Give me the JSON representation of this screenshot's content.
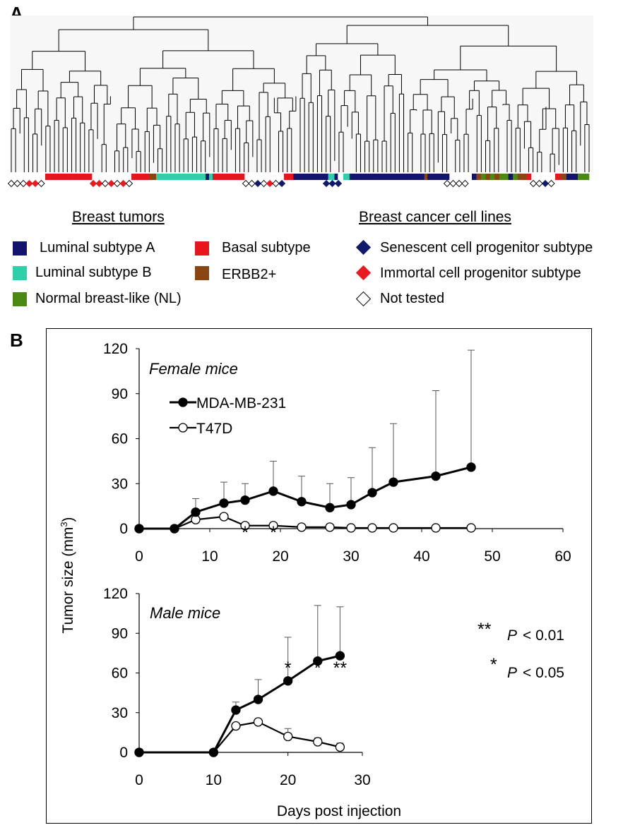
{
  "panel_a": {
    "letter": "A",
    "colors": {
      "luminal_a": "#12146e",
      "luminal_b": "#2ecfa9",
      "basal": "#e8161c",
      "erbb2": "#8b4513",
      "normal_like": "#4a8a12",
      "senescent": "#0f1a6b",
      "immortal": "#ea1a20",
      "not_tested": "#ffffff"
    },
    "tumor_strip": [
      "basal",
      "basal",
      "basal",
      "basal",
      "basal",
      "basal",
      "basal",
      "basal",
      "basal",
      "basal",
      "basal",
      "basal",
      "basal",
      "basal",
      "basal",
      "erbb2",
      "erbb2",
      "luminal_b",
      "luminal_b",
      "luminal_b",
      "luminal_b",
      "luminal_b",
      "luminal_b",
      "luminal_b",
      "luminal_b",
      "luminal_b",
      "luminal_b",
      "luminal_b",
      "luminal_b",
      "luminal_b",
      "luminal_b",
      "luminal_a",
      "luminal_b",
      "basal",
      "basal",
      "basal",
      "basal",
      "basal",
      "basal",
      "basal",
      "basal",
      "basal",
      "basal",
      "basal",
      "basal",
      "luminal_a",
      "luminal_a",
      "luminal_a",
      "luminal_a",
      "luminal_a",
      "luminal_a",
      "luminal_a",
      "luminal_a",
      "luminal_a",
      "luminal_a",
      "luminal_a",
      "luminal_b",
      "luminal_b",
      "luminal_a",
      "luminal_b",
      "luminal_b",
      "luminal_a",
      "luminal_a",
      "luminal_a",
      "luminal_a",
      "luminal_a",
      "luminal_a",
      "luminal_a",
      "luminal_a",
      "luminal_a",
      "luminal_a",
      "luminal_a",
      "luminal_a",
      "luminal_a",
      "luminal_a",
      "luminal_a",
      "luminal_a",
      "luminal_a",
      "luminal_a",
      "luminal_a",
      "luminal_a",
      "luminal_a",
      "luminal_a",
      "luminal_a",
      "luminal_a",
      "erbb2",
      "luminal_a",
      "luminal_a",
      "luminal_a",
      "luminal_a",
      "luminal_a",
      "luminal_a",
      "luminal_a",
      "luminal_a",
      "erbb2",
      "normal_like",
      "erbb2",
      "normal_like",
      "erbb2",
      "normal_like",
      "normal_like",
      "luminal_a",
      "normal_like",
      "erbb2",
      "erbb2",
      "basal",
      "basal",
      "erbb2",
      "luminal_a",
      "luminal_a",
      "normal_like",
      "normal_like",
      "normal_like",
      "normal_like"
    ],
    "legend": {
      "tumors_heading": "Breast tumors",
      "cell_lines_heading": "Breast cancer cell lines",
      "luminal_a": "Luminal subtype A",
      "luminal_b": "Luminal subtype B",
      "normal_like": "Normal breast-like (NL)",
      "basal": "Basal subtype",
      "erbb2": "ERBB2+",
      "senescent": "Senescent cell progenitor subtype",
      "immortal": "Immortal cell progenitor subtype",
      "not_tested": "Not tested"
    }
  },
  "panel_b": {
    "letter": "B",
    "y_axis_title": "Tumor size (mm",
    "y_axis_sup": "3",
    "y_axis_close": ")",
    "x_axis_title": "Days post injection",
    "series_styles": {
      "MDA-MB-231": "#000000",
      "T47D": "#ffffff"
    },
    "significance_legend": [
      {
        "stars": "**",
        "p_text": "P",
        "rel": "< 0.01"
      },
      {
        "stars": "*",
        "p_text": "P",
        "rel": "< 0.05"
      }
    ]
  },
  "chart_data": [
    {
      "type": "line",
      "title": "Female mice",
      "xlabel": "",
      "ylabel": "Tumor size (mm3)",
      "xlim": [
        0,
        60
      ],
      "ylim": [
        0,
        120
      ],
      "x_ticks": [
        0,
        10,
        20,
        30,
        40,
        50,
        60
      ],
      "y_ticks": [
        0,
        30,
        60,
        90,
        120
      ],
      "legend_position": "top-left",
      "series": [
        {
          "name": "MDA-MB-231",
          "x": [
            0,
            5,
            8,
            12,
            15,
            19,
            23,
            27,
            30,
            33,
            36,
            42,
            47
          ],
          "y": [
            0,
            0,
            11,
            17,
            19,
            25,
            18,
            14,
            16,
            24,
            31,
            35,
            41
          ],
          "error_upper": [
            0,
            0,
            20,
            31,
            30,
            45,
            35,
            30,
            34,
            54,
            70,
            92,
            119
          ]
        },
        {
          "name": "T47D",
          "x": [
            0,
            5,
            8,
            12,
            15,
            19,
            23,
            27,
            30,
            33,
            36,
            42,
            47
          ],
          "y": [
            0,
            0,
            6,
            8,
            2,
            2,
            1,
            1,
            0.5,
            0.5,
            0.5,
            0.5,
            0.5
          ],
          "error_upper": [
            0,
            0,
            6,
            10,
            2,
            2,
            1,
            1,
            0.5,
            0.5,
            0.5,
            0.5,
            0.5
          ]
        }
      ],
      "annotations": [
        {
          "text": "*",
          "x": 15
        },
        {
          "text": "*",
          "x": 19
        }
      ]
    },
    {
      "type": "line",
      "title": "Male mice",
      "xlabel": "Days post injection",
      "ylabel": "Tumor size (mm3)",
      "xlim": [
        0,
        30
      ],
      "ylim": [
        0,
        120
      ],
      "x_ticks": [
        0,
        10,
        20,
        30
      ],
      "y_ticks": [
        0,
        30,
        60,
        90,
        120
      ],
      "series": [
        {
          "name": "MDA-MB-231",
          "x": [
            0,
            10,
            13,
            16,
            20,
            24,
            27
          ],
          "y": [
            0,
            0,
            32,
            40,
            54,
            69,
            73
          ],
          "error_upper": [
            0,
            0,
            38,
            55,
            87,
            111,
            110
          ]
        },
        {
          "name": "T47D",
          "x": [
            0,
            10,
            13,
            16,
            20,
            24,
            27
          ],
          "y": [
            0,
            0,
            20,
            23,
            12,
            8,
            4
          ],
          "error_upper": [
            0,
            0,
            20,
            23,
            18,
            11,
            7
          ]
        }
      ],
      "annotations": [
        {
          "text": "*",
          "x": 20
        },
        {
          "text": "*",
          "x": 24
        },
        {
          "text": "**",
          "x": 27
        }
      ]
    }
  ]
}
